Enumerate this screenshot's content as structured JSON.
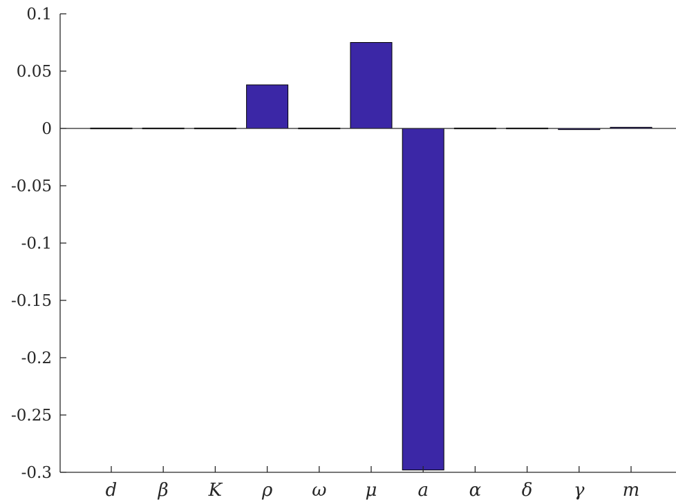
{
  "chart_data": {
    "type": "bar",
    "categories": [
      "d",
      "β",
      "K",
      "ρ",
      "ω",
      "μ",
      "a",
      "α",
      "δ",
      "γ",
      "m"
    ],
    "values": [
      0.0,
      0.0,
      0.0,
      0.038,
      0.0,
      0.075,
      -0.298,
      0.0,
      0.0,
      -0.001,
      0.001
    ],
    "ylim": [
      -0.3,
      0.1
    ],
    "yticks": [
      "0.1",
      "0.05",
      "0",
      "-0.05",
      "-0.1",
      "-0.15",
      "-0.2",
      "-0.25",
      "-0.3"
    ],
    "ytick_values": [
      0.1,
      0.05,
      0,
      -0.05,
      -0.1,
      -0.15,
      -0.2,
      -0.25,
      -0.3
    ],
    "grid": false,
    "bar_color": "#3b27a6",
    "edge_color": "#000000",
    "axis_color": "#262626"
  }
}
